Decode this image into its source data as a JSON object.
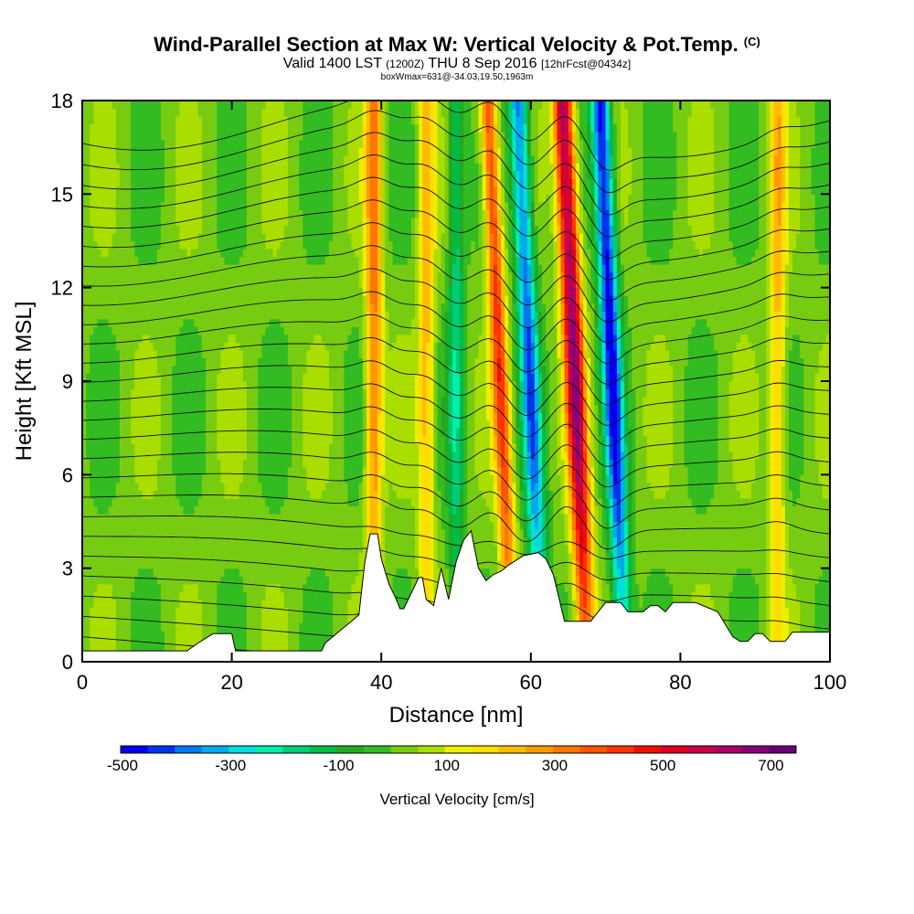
{
  "header": {
    "title": "Wind-Parallel Section at Max W: Vertical Velocity & Pot.Temp.",
    "copyright": "(C)",
    "valid_main": "Valid 1400 LST",
    "valid_utc": "(1200Z)",
    "valid_date": "THU 8 Sep 2016",
    "forecast": "[12hrFcst@0434z]",
    "box_info": "boxWmax=631@-34.03,19.50,1963m"
  },
  "chart_data": {
    "type": "heatmap",
    "title": "Wind-Parallel Section at Max W: Vertical Velocity & Pot.Temp.",
    "xlabel": "Distance [nm]",
    "ylabel": "Height [Kft MSL]",
    "xlim": [
      0,
      100
    ],
    "ylim": [
      0,
      18
    ],
    "xticks": [
      0,
      20,
      40,
      60,
      80,
      100
    ],
    "yticks": [
      0,
      3,
      6,
      9,
      12,
      15,
      18
    ],
    "colorbar": {
      "label": "Vertical Velocity [cm/s]",
      "tick_labels": [
        "-500",
        "-300",
        "-100",
        "100",
        "300",
        "500",
        "700"
      ],
      "tick_values": [
        -500,
        -300,
        -100,
        100,
        300,
        500,
        700
      ],
      "levels": [
        -500,
        -450,
        -400,
        -350,
        -300,
        -250,
        -200,
        -150,
        -100,
        -50,
        0,
        50,
        100,
        150,
        200,
        250,
        300,
        350,
        400,
        450,
        500,
        550,
        600,
        650,
        700,
        750
      ],
      "colors": [
        "#0000ee",
        "#0033ee",
        "#0077ee",
        "#00aaee",
        "#00dddd",
        "#00eeaa",
        "#00cc77",
        "#00bb44",
        "#22aa22",
        "#33bb22",
        "#77cc11",
        "#aadd00",
        "#eeee00",
        "#ffdd00",
        "#ffbb00",
        "#ff9900",
        "#ff7700",
        "#ff5500",
        "#ff3300",
        "#ee1100",
        "#dd0022",
        "#cc0044",
        "#aa0066",
        "#880077",
        "#660077"
      ]
    },
    "vertical_velocity_bands": [
      {
        "center_nm": 39,
        "peak_cm_s": 300
      },
      {
        "center_nm": 46,
        "peak_cm_s": 200
      },
      {
        "center_nm": 50,
        "peak_cm_s": -200
      },
      {
        "center_nm": 55,
        "peak_cm_s": 400
      },
      {
        "center_nm": 59,
        "peak_cm_s": -400
      },
      {
        "center_nm": 65,
        "peak_cm_s": 631
      },
      {
        "center_nm": 70,
        "peak_cm_s": -500
      },
      {
        "center_nm": 93,
        "peak_cm_s": 200
      }
    ],
    "terrain_height_kft": [
      [
        0,
        0.35
      ],
      [
        14,
        0.35
      ],
      [
        15.5,
        0.6
      ],
      [
        17.5,
        0.9
      ],
      [
        20,
        0.9
      ],
      [
        20.5,
        0.35
      ],
      [
        32,
        0.35
      ],
      [
        32.5,
        0.6
      ],
      [
        34,
        0.9
      ],
      [
        36,
        1.3
      ],
      [
        37,
        1.5
      ],
      [
        37.8,
        3.2
      ],
      [
        38.5,
        4.1
      ],
      [
        39.5,
        4.1
      ],
      [
        40,
        3.3
      ],
      [
        41,
        2.5
      ],
      [
        42,
        2.0
      ],
      [
        42.5,
        1.7
      ],
      [
        43,
        1.7
      ],
      [
        44,
        2.2
      ],
      [
        45,
        2.7
      ],
      [
        45.5,
        2.7
      ],
      [
        46,
        2.0
      ],
      [
        47,
        1.8
      ],
      [
        48,
        3.0
      ],
      [
        49,
        2.0
      ],
      [
        50,
        3.2
      ],
      [
        51,
        3.9
      ],
      [
        52,
        4.2
      ],
      [
        53,
        3.0
      ],
      [
        54,
        2.6
      ],
      [
        55,
        2.8
      ],
      [
        56,
        2.9
      ],
      [
        57,
        3.1
      ],
      [
        59,
        3.4
      ],
      [
        61,
        3.5
      ],
      [
        62,
        3.3
      ],
      [
        63,
        2.8
      ],
      [
        63.8,
        2.0
      ],
      [
        64.5,
        1.3
      ],
      [
        67,
        1.3
      ],
      [
        68,
        1.3
      ],
      [
        69,
        1.6
      ],
      [
        70,
        1.9
      ],
      [
        72,
        1.9
      ],
      [
        73,
        1.6
      ],
      [
        75,
        1.6
      ],
      [
        76,
        1.8
      ],
      [
        77,
        1.8
      ],
      [
        78,
        1.6
      ],
      [
        79,
        1.9
      ],
      [
        80,
        1.9
      ],
      [
        82,
        1.9
      ],
      [
        85,
        1.6
      ],
      [
        87,
        0.8
      ],
      [
        88,
        0.65
      ],
      [
        89,
        0.65
      ],
      [
        90,
        0.9
      ],
      [
        91,
        0.9
      ],
      [
        92,
        0.65
      ],
      [
        94,
        0.65
      ],
      [
        95,
        0.95
      ],
      [
        100,
        0.95
      ]
    ]
  }
}
